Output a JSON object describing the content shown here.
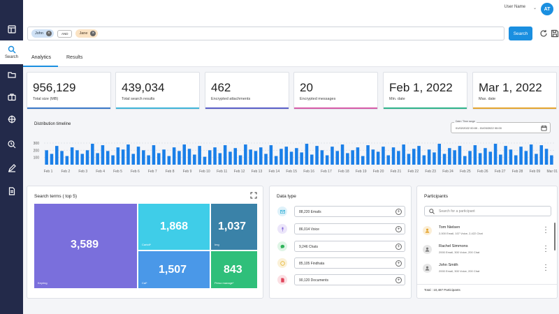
{
  "header": {
    "user_name": "User Name",
    "avatar_initials": "AT"
  },
  "sidebar": {
    "items": [
      {
        "icon": "dashboard-icon",
        "label": ""
      },
      {
        "icon": "search-icon",
        "label": "Search"
      },
      {
        "icon": "folder-icon",
        "label": ""
      },
      {
        "icon": "briefcase-icon",
        "label": ""
      },
      {
        "icon": "crosshair-icon",
        "label": ""
      },
      {
        "icon": "search-clock-icon",
        "label": ""
      },
      {
        "icon": "pen-icon",
        "label": ""
      },
      {
        "icon": "document-icon",
        "label": ""
      }
    ]
  },
  "search": {
    "terms": [
      {
        "label": "John",
        "color": "#cfe1f5"
      },
      {
        "label": "Jane",
        "color": "#fbe3c4"
      }
    ],
    "operator": "AND",
    "button_label": "Search"
  },
  "tabs": [
    {
      "label": "Analytics",
      "active": true
    },
    {
      "label": "Results",
      "active": false
    }
  ],
  "stats": [
    {
      "value": "956,129",
      "label": "Total size (MB)",
      "color": "#3a78c8"
    },
    {
      "value": "439,034",
      "label": "Total search results",
      "color": "#3fb4d8"
    },
    {
      "value": "462",
      "label": "Encrypted attachments",
      "color": "#5a5fc8"
    },
    {
      "value": "20",
      "label": "Encrypted messages",
      "color": "#d65aa8"
    },
    {
      "value": "Feb 1, 2022",
      "label": "Min. date",
      "color": "#2fb38a"
    },
    {
      "value": "Mar 1, 2022",
      "label": "Max. date",
      "color": "#e5a52f"
    }
  ],
  "timeline": {
    "title": "Distribution timeline",
    "range_label": "Date / Time range",
    "range_value": "01/02/2022 00:00 - 01/03/2022 00:00",
    "y_ticks": [
      "300",
      "200",
      "100"
    ],
    "x_labels": [
      "Feb 1",
      "Feb 2",
      "Feb 3",
      "Feb 4",
      "Feb 5",
      "Feb 6",
      "Feb 7",
      "Feb 8",
      "Feb 9",
      "Feb 10",
      "Feb 11",
      "Feb 12",
      "Feb 13",
      "Feb 14",
      "Feb 15",
      "Feb 16",
      "Feb 17",
      "Feb 18",
      "Feb 19",
      "Feb 20",
      "Feb 21",
      "Feb 22",
      "Feb 23",
      "Feb 24",
      "Feb 25",
      "Feb 26",
      "Feb 27",
      "Feb 28",
      "Feb 09",
      "Mar 01"
    ],
    "values": [
      200,
      150,
      260,
      190,
      120,
      240,
      200,
      150,
      200,
      290,
      160,
      270,
      190,
      130,
      240,
      210,
      280,
      150,
      250,
      200,
      130,
      270,
      160,
      210,
      120,
      240,
      190,
      280,
      220,
      140,
      260,
      110,
      200,
      240,
      160,
      270,
      180,
      230,
      130,
      280,
      210,
      190,
      240,
      150,
      270,
      120,
      220,
      250,
      180,
      230,
      170,
      290,
      140,
      260,
      200,
      130,
      250,
      190,
      280,
      160,
      200,
      240,
      120,
      270,
      210,
      180,
      250,
      130,
      240,
      190,
      280,
      150,
      220,
      260,
      130,
      210,
      170,
      290,
      150,
      230,
      200,
      260,
      120,
      190,
      270,
      160,
      230,
      180,
      290,
      140,
      260,
      210,
      130,
      250,
      190,
      280,
      150,
      270,
      220,
      130
    ]
  },
  "search_terms": {
    "title": "Search terms ( top 5)",
    "tiles": [
      {
        "value": "3,589",
        "label": "Keyring",
        "color": "#7a6fdc"
      },
      {
        "value": "1,868",
        "label": "Cartoll*",
        "color": "#3fcde8"
      },
      {
        "value": "1,037",
        "label": "Img",
        "color": "#3a82a8"
      },
      {
        "value": "1,507",
        "label": "Cal*",
        "color": "#4a98e8"
      },
      {
        "value": "843",
        "label": "Perso manage*",
        "color": "#2fbf7a"
      }
    ]
  },
  "data_type": {
    "title": "Data type",
    "items": [
      {
        "label": "88,220 Emails",
        "color": "#3fb4d8",
        "bg": "#dff2fa",
        "icon": "email-icon"
      },
      {
        "label": "86,014 Voice",
        "color": "#8a6fdc",
        "bg": "#ece6fa",
        "icon": "microphone-icon"
      },
      {
        "label": "9,246 Chats",
        "color": "#2fb35a",
        "bg": "#dff5e6",
        "icon": "chat-icon"
      },
      {
        "label": "85,105 Findhata",
        "color": "#e5b52f",
        "bg": "#fbf1d8",
        "icon": "finance-icon"
      },
      {
        "label": "90,120 Documents",
        "color": "#e0445a",
        "bg": "#fbe0e4",
        "icon": "document-icon"
      }
    ]
  },
  "participants": {
    "title": "Participants",
    "search_placeholder": "Search for a participant",
    "items": [
      {
        "name": "Tom Nielsen",
        "details": "2,000 Email, 107 Voice, 2,422 Chat",
        "color": "#e5a52f",
        "bg": "#fbeed6"
      },
      {
        "name": "Rachel Simmons",
        "details": "2000 Email, 300 Voice, 200 Chat",
        "color": "#777",
        "bg": "#e6e6e6"
      },
      {
        "name": "John Smith",
        "details": "2000 Email, 300 Voice, 200 Chat",
        "color": "#777",
        "bg": "#e6e6e6"
      }
    ],
    "total": "Total : 10,487 Participants"
  }
}
